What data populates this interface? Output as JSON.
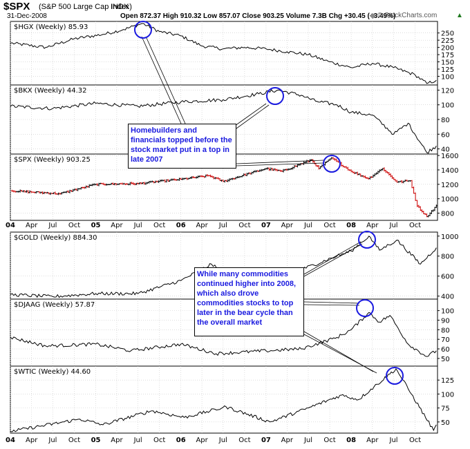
{
  "header": {
    "symbol": "$SPX",
    "name": "(S&P 500 Large Cap Index)",
    "exchange": "INDX",
    "date": "31-Dec-2008",
    "ohlc": "Open 872.37  High 910.32  Low 857.07  Close 903.25  Volume 7.3B  Chg +30.45 (+3.49%)",
    "up_icon": "up-arrow-icon",
    "brand": "© StockCharts.com",
    "brand_icon": "stockcharts-logo-icon"
  },
  "time_axis": {
    "tick_labels": [
      "04",
      "Apr",
      "Jul",
      "Oct",
      "05",
      "Apr",
      "Jul",
      "Oct",
      "06",
      "Apr",
      "Jul",
      "Oct",
      "07",
      "Apr",
      "Jul",
      "Oct",
      "08",
      "Apr",
      "Jul",
      "Oct"
    ]
  },
  "annotations": [
    {
      "text": "Homebuilders and financials topped before the stock market put in a top in late 2007"
    },
    {
      "text": "While many commodities continued higher into 2008, which also drove commodities stocks to top later in the bear cycle than the overall market"
    }
  ],
  "colors": {
    "line": "#000000",
    "up": "#000000",
    "down": "#cc0000",
    "annotation_text": "#1a1adf",
    "circle": "#1a1adf",
    "grid": "#c8c8c8"
  },
  "chart_data": [
    {
      "type": "line",
      "title": "$HGX (Weekly) 85.93",
      "ylim": [
        70,
        290
      ],
      "yticks": [
        100,
        125,
        150,
        175,
        200,
        225,
        250
      ],
      "x": [
        "2004-01-02",
        "2004-06-01",
        "2004-10-01",
        "2005-02-01",
        "2005-05-01",
        "2005-07-20",
        "2005-10-01",
        "2006-01-01",
        "2006-04-01",
        "2006-07-01",
        "2006-10-01",
        "2007-01-01",
        "2007-04-01",
        "2007-07-01",
        "2007-10-01",
        "2008-01-01",
        "2008-04-01",
        "2008-07-01",
        "2008-10-01",
        "2008-11-20",
        "2008-12-31"
      ],
      "y": [
        215,
        200,
        230,
        245,
        262,
        283,
        255,
        240,
        205,
        195,
        200,
        195,
        185,
        175,
        150,
        130,
        145,
        130,
        105,
        75,
        86
      ]
    },
    {
      "type": "line",
      "title": "$BKX (Weekly) 44.32",
      "ylim": [
        33,
        127
      ],
      "yticks": [
        40,
        60,
        80,
        100,
        120
      ],
      "x": [
        "2004-01-02",
        "2004-07-01",
        "2005-01-01",
        "2005-07-01",
        "2006-01-01",
        "2006-07-01",
        "2006-12-01",
        "2007-02-20",
        "2007-06-01",
        "2007-08-01",
        "2007-11-01",
        "2008-01-01",
        "2008-04-01",
        "2008-07-01",
        "2008-09-01",
        "2008-11-20",
        "2008-12-31"
      ],
      "y": [
        98,
        95,
        102,
        98,
        104,
        107,
        115,
        120,
        113,
        105,
        100,
        90,
        86,
        60,
        75,
        35,
        44
      ]
    },
    {
      "type": "ohlc-bar",
      "title": "$SPX (Weekly) 903.25",
      "ylim": [
        700,
        1620
      ],
      "yticks": [
        800,
        1000,
        1200,
        1400,
        1600
      ],
      "x": [
        "2004-01-02",
        "2004-08-01",
        "2005-01-01",
        "2005-07-01",
        "2006-01-01",
        "2006-05-01",
        "2006-07-01",
        "2007-01-01",
        "2007-03-10",
        "2007-07-15",
        "2007-08-15",
        "2007-10-09",
        "2008-01-01",
        "2008-03-15",
        "2008-05-15",
        "2008-07-15",
        "2008-09-10",
        "2008-10-10",
        "2008-11-20",
        "2008-12-31"
      ],
      "y": [
        1110,
        1070,
        1200,
        1210,
        1270,
        1320,
        1240,
        1420,
        1380,
        1540,
        1420,
        1565,
        1380,
        1280,
        1420,
        1230,
        1250,
        900,
        752,
        903
      ]
    },
    {
      "type": "line",
      "title": "$GOLD (Weekly) 884.30",
      "ylim": [
        370,
        1040
      ],
      "yticks": [
        400,
        600,
        800,
        1000
      ],
      "x": [
        "2004-01-02",
        "2004-07-01",
        "2005-01-01",
        "2005-07-01",
        "2006-01-01",
        "2006-05-12",
        "2006-07-01",
        "2007-01-01",
        "2007-06-01",
        "2007-11-01",
        "2008-01-01",
        "2008-03-17",
        "2008-05-01",
        "2008-07-15",
        "2008-10-24",
        "2008-12-31"
      ],
      "y": [
        415,
        395,
        425,
        425,
        555,
        720,
        630,
        635,
        665,
        800,
        850,
        1000,
        860,
        960,
        720,
        884
      ]
    },
    {
      "type": "line",
      "title": "$DJAAG (Weekly) 57.87",
      "ylim": [
        42,
        112
      ],
      "yticks": [
        50,
        60,
        70,
        80,
        90,
        100
      ],
      "x": [
        "2004-01-02",
        "2004-06-01",
        "2005-01-01",
        "2005-06-01",
        "2006-01-01",
        "2006-06-01",
        "2007-01-01",
        "2007-06-01",
        "2007-11-01",
        "2008-01-01",
        "2008-03-17",
        "2008-05-01",
        "2008-06-15",
        "2008-09-01",
        "2008-11-20",
        "2008-12-31"
      ],
      "y": [
        72,
        63,
        65,
        58,
        65,
        55,
        58,
        60,
        72,
        80,
        98,
        88,
        95,
        65,
        52,
        58
      ]
    },
    {
      "type": "line",
      "title": "$WTIC (Weekly) 44.60",
      "ylim": [
        30,
        150
      ],
      "yticks": [
        50,
        75,
        100,
        125
      ],
      "x": [
        "2004-01-02",
        "2004-10-25",
        "2005-02-01",
        "2005-08-29",
        "2006-01-15",
        "2006-07-14",
        "2007-01-18",
        "2007-07-01",
        "2007-11-20",
        "2008-02-01",
        "2008-07-11",
        "2008-09-15",
        "2008-12-19",
        "2008-12-31"
      ],
      "y": [
        33,
        55,
        45,
        70,
        58,
        77,
        50,
        75,
        98,
        90,
        145,
        100,
        35,
        45
      ]
    }
  ]
}
